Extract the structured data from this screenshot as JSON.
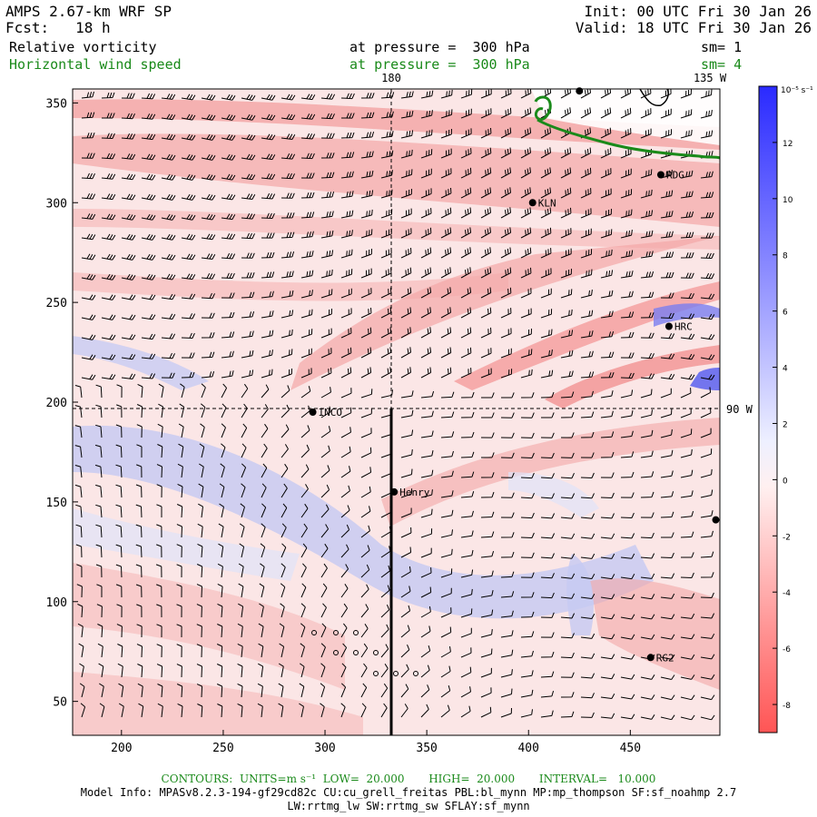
{
  "header": {
    "model": "AMPS 2.67-km WRF SP",
    "forecast": "Fcst:   18 h",
    "init": "Init: 00 UTC Fri 30 Jan 26",
    "valid": "Valid: 18 UTC Fri 30 Jan 26",
    "field1": "Relative vorticity",
    "field2": "Horizontal wind speed",
    "pressure1": "at pressure =  300 hPa",
    "pressure2": "at pressure =  300 hPa",
    "smooth1": "sm= 1",
    "smooth2": "sm= 4"
  },
  "map_labels": {
    "meridian_180": "180",
    "meridian_135w": "135 W",
    "meridian_90w": "90 W"
  },
  "stations": [
    {
      "name": "RDG",
      "x": 465,
      "y": 314
    },
    {
      "name": "KLN",
      "x": 402,
      "y": 300
    },
    {
      "name": "HRC",
      "x": 469,
      "y": 238
    },
    {
      "name": "INCO",
      "x": 294,
      "y": 195
    },
    {
      "name": "Henry",
      "x": 334,
      "y": 155
    },
    {
      "name": "RG2",
      "x": 460,
      "y": 72
    },
    {
      "name": "",
      "x": 425,
      "y": 356
    },
    {
      "name": "",
      "x": 492,
      "y": 141
    }
  ],
  "axes": {
    "x_ticks": [
      200,
      250,
      300,
      350,
      400,
      450
    ],
    "y_ticks": [
      50,
      100,
      150,
      200,
      250,
      300,
      350
    ],
    "x_range": [
      176,
      494
    ],
    "y_range": [
      33,
      357
    ]
  },
  "colorbar": {
    "unit_label": "10⁻⁵ s⁻¹",
    "ticks": [
      12,
      10,
      8,
      6,
      4,
      2,
      0,
      -2,
      -4,
      -6,
      -8
    ],
    "range": [
      -9,
      14
    ]
  },
  "footer": {
    "contours": "CONTOURS:  UNITS=m s⁻¹  LOW=  20.000       HIGH=  20.000       INTERVAL=   10.000",
    "model_info": "Model Info: MPASv8.2.3-194-gf29cd82c CU:cu_grell_freitas PBL:bl_mynn MP:mp_thompson SF:sf_noahmp 2.7",
    "physics": "LW:rrtmg_lw SW:rrtmg_sw SFLAY:sf_mynn"
  },
  "colors": {
    "positive": "#3333ff",
    "negative": "#ff5050",
    "contour": "#1a8a1a"
  }
}
